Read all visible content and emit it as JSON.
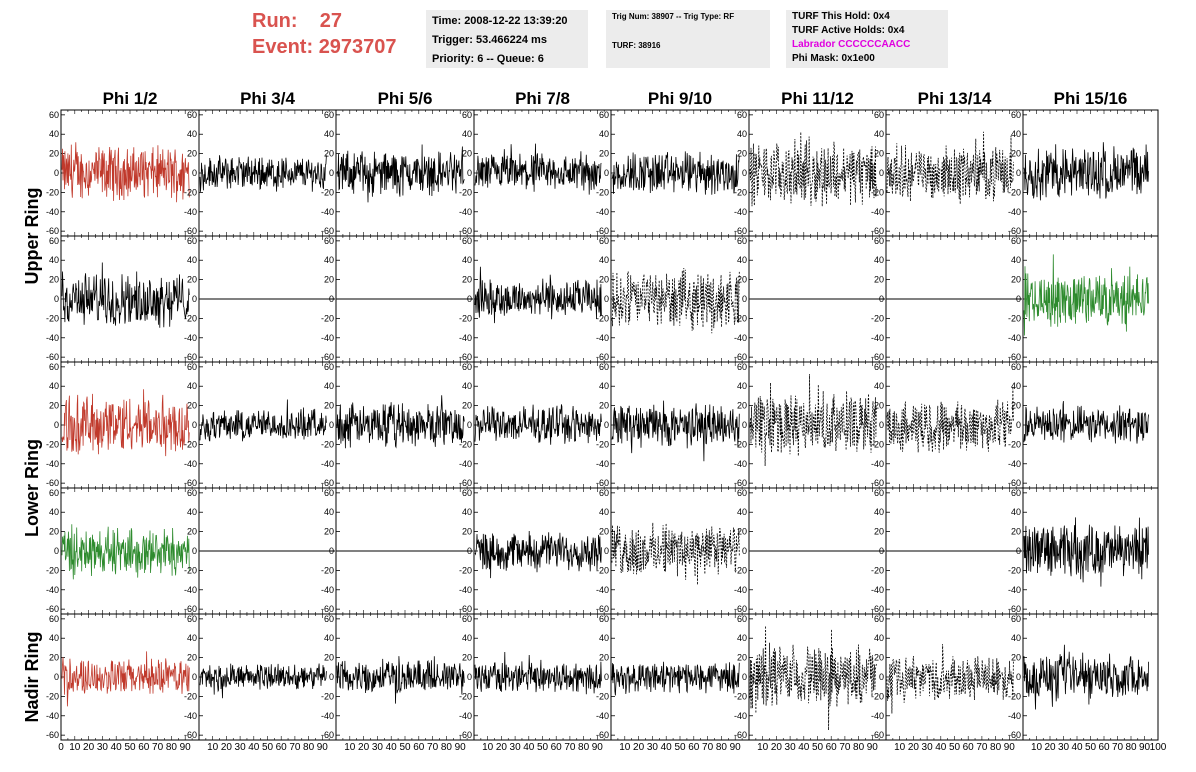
{
  "run": {
    "run_label": "Run:",
    "run_value": "27",
    "event_label": "Event:",
    "event_value": "2973707"
  },
  "info1": {
    "time": "Time: 2008-12-22 13:39:20",
    "trigger": "Trigger: 53.466224 ms",
    "priority": "Priority: 6 -- Queue: 6"
  },
  "info2": {
    "trig": "Trig Num: 38907 -- Trig Type: RF",
    "turf": "TURF: 38916"
  },
  "info3": {
    "this_hold": "TURF This Hold: 0x4",
    "active_holds": "TURF Active Holds: 0x4",
    "labrador": "Labrador CCCCCCAACC",
    "phi_mask": "Phi Mask: 0x1e00"
  },
  "colors": {
    "red": "#c0392b",
    "green": "#2e8b2e",
    "black": "#000000",
    "header_red": "#d9534f",
    "labrador": "#e000e0"
  },
  "chart_data": {
    "type": "line",
    "columns": [
      "Phi 1/2",
      "Phi 3/4",
      "Phi 5/6",
      "Phi 7/8",
      "Phi 9/10",
      "Phi 11/12",
      "Phi 13/14",
      "Phi 15/16"
    ],
    "rows": [
      "Upper Ring",
      "Lower Ring",
      "Nadir Ring"
    ],
    "ylim": [
      -65,
      65
    ],
    "yticks": [
      "60",
      "40",
      "20",
      "0",
      "-20",
      "-40",
      "-60"
    ],
    "xlim": [
      0,
      100
    ],
    "xticks": [
      "0",
      "10",
      "20",
      "30",
      "40",
      "50",
      "60",
      "70",
      "80",
      "90",
      "100"
    ],
    "panels": [
      [
        {
          "style": "red",
          "amp": 22
        },
        {
          "style": "solid",
          "amp": 14
        },
        {
          "style": "solid",
          "amp": 18
        },
        {
          "style": "solid",
          "amp": 16
        },
        {
          "style": "solid",
          "amp": 18
        },
        {
          "style": "dashed",
          "amp": 26
        },
        {
          "style": "dashed",
          "amp": 22
        },
        {
          "style": "solid",
          "amp": 22
        }
      ],
      [
        {
          "style": "solid",
          "amp": 22
        },
        {
          "style": "flat",
          "amp": 0
        },
        {
          "style": "flat",
          "amp": 0
        },
        {
          "style": "solid",
          "amp": 16
        },
        {
          "style": "dashed",
          "amp": 24
        },
        {
          "style": "flat",
          "amp": 0
        },
        {
          "style": "flat",
          "amp": 0
        },
        {
          "style": "green",
          "amp": 22
        }
      ],
      [
        {
          "style": "red",
          "amp": 25
        },
        {
          "style": "solid",
          "amp": 13
        },
        {
          "style": "solid",
          "amp": 18
        },
        {
          "style": "solid",
          "amp": 15
        },
        {
          "style": "solid",
          "amp": 18
        },
        {
          "style": "dashed",
          "amp": 26
        },
        {
          "style": "dashed",
          "amp": 22
        },
        {
          "style": "solid",
          "amp": 15
        }
      ],
      [
        {
          "style": "green",
          "amp": 20
        },
        {
          "style": "flat",
          "amp": 0
        },
        {
          "style": "flat",
          "amp": 0
        },
        {
          "style": "solid",
          "amp": 16
        },
        {
          "style": "dashed",
          "amp": 22
        },
        {
          "style": "flat",
          "amp": 0
        },
        {
          "style": "flat",
          "amp": 0
        },
        {
          "style": "solid",
          "amp": 22
        }
      ],
      [
        {
          "style": "red",
          "amp": 15
        },
        {
          "style": "solid",
          "amp": 11
        },
        {
          "style": "solid",
          "amp": 14
        },
        {
          "style": "solid",
          "amp": 13
        },
        {
          "style": "solid",
          "amp": 13
        },
        {
          "style": "dashed",
          "amp": 26
        },
        {
          "style": "dashed",
          "amp": 18
        },
        {
          "style": "solid",
          "amp": 18
        }
      ]
    ]
  }
}
